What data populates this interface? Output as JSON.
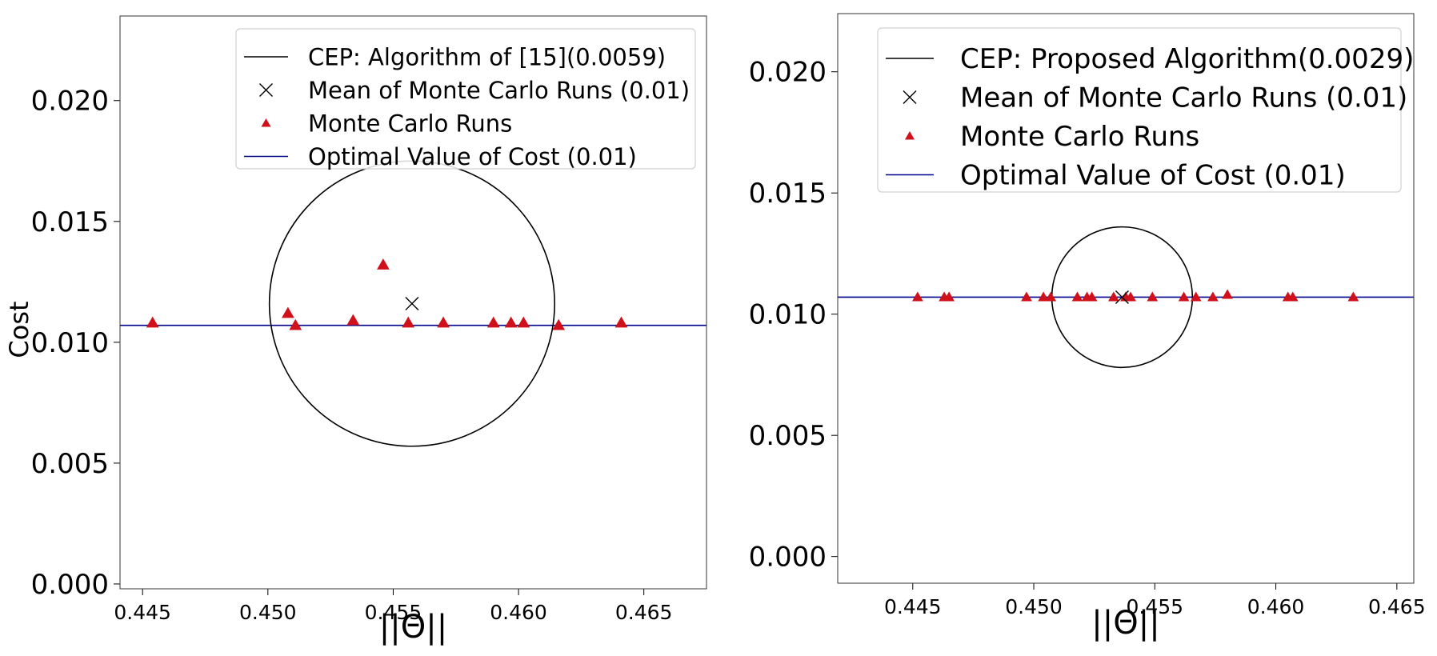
{
  "chart_data": [
    {
      "type": "scatter",
      "xlabel": "||Θ||",
      "ylabel": "Cost",
      "xlim": [
        0.4441,
        0.4675
      ],
      "ylim": [
        -0.0002,
        0.0235
      ],
      "xticks": [
        0.445,
        0.45,
        0.455,
        0.46,
        0.465
      ],
      "xtick_labels": [
        "0.445",
        "0.450",
        "0.455",
        "0.460",
        "0.465"
      ],
      "yticks": [
        0.0,
        0.005,
        0.01,
        0.015,
        0.02
      ],
      "ytick_labels": [
        "0.000",
        "0.005",
        "0.010",
        "0.015",
        "0.020"
      ],
      "legend_position": "top-right",
      "legend": [
        {
          "label": "CEP: Algorithm of [15](0.0059)",
          "kind": "line",
          "color": "#000000"
        },
        {
          "label": "Mean of Monte Carlo Runs (0.01)",
          "kind": "x-marker",
          "color": "#000000"
        },
        {
          "label": "Monte Carlo Runs",
          "kind": "triangle-marker",
          "color": "#d0101a"
        },
        {
          "label": "Optimal Value of Cost (0.01)",
          "kind": "line",
          "color": "#00008b"
        }
      ],
      "cep_circle": {
        "center_x": 0.45575,
        "center_y": 0.0116,
        "radius": 0.0059
      },
      "mean": {
        "x": 0.45575,
        "y": 0.0116
      },
      "optimal_cost": 0.0107,
      "runs": [
        {
          "x": 0.4454,
          "y": 0.0108
        },
        {
          "x": 0.4508,
          "y": 0.0112
        },
        {
          "x": 0.4511,
          "y": 0.0107
        },
        {
          "x": 0.4534,
          "y": 0.0109
        },
        {
          "x": 0.4546,
          "y": 0.0132
        },
        {
          "x": 0.4556,
          "y": 0.0108
        },
        {
          "x": 0.457,
          "y": 0.0108
        },
        {
          "x": 0.459,
          "y": 0.0108
        },
        {
          "x": 0.4597,
          "y": 0.0108
        },
        {
          "x": 0.4602,
          "y": 0.0108
        },
        {
          "x": 0.4616,
          "y": 0.0107
        },
        {
          "x": 0.4641,
          "y": 0.0108
        }
      ]
    },
    {
      "type": "scatter",
      "xlabel": "||Θ||",
      "ylabel": "",
      "xlim": [
        0.4419,
        0.4657
      ],
      "ylim": [
        -0.0011,
        0.0224
      ],
      "xticks": [
        0.445,
        0.45,
        0.455,
        0.46,
        0.465
      ],
      "xtick_labels": [
        "0.445",
        "0.450",
        "0.455",
        "0.460",
        "0.465"
      ],
      "yticks": [
        0.0,
        0.005,
        0.01,
        0.015,
        0.02
      ],
      "ytick_labels": [
        "0.000",
        "0.005",
        "0.010",
        "0.015",
        "0.020"
      ],
      "legend_position": "top-right",
      "legend": [
        {
          "label": "CEP: Proposed Algorithm(0.0029)",
          "kind": "line",
          "color": "#000000"
        },
        {
          "label": "Mean of Monte Carlo Runs (0.01)",
          "kind": "x-marker",
          "color": "#000000"
        },
        {
          "label": "Monte Carlo Runs",
          "kind": "triangle-marker",
          "color": "#d0101a"
        },
        {
          "label": "Optimal Value of Cost (0.01)",
          "kind": "line",
          "color": "#00008b"
        }
      ],
      "cep_circle": {
        "center_x": 0.45365,
        "center_y": 0.0107,
        "radius": 0.0029
      },
      "mean": {
        "x": 0.45365,
        "y": 0.0107
      },
      "optimal_cost": 0.0107,
      "runs": [
        {
          "x": 0.4452,
          "y": 0.0107
        },
        {
          "x": 0.4463,
          "y": 0.0107
        },
        {
          "x": 0.4465,
          "y": 0.0107
        },
        {
          "x": 0.4497,
          "y": 0.0107
        },
        {
          "x": 0.4504,
          "y": 0.0107
        },
        {
          "x": 0.4507,
          "y": 0.0107
        },
        {
          "x": 0.4518,
          "y": 0.0107
        },
        {
          "x": 0.4522,
          "y": 0.0107
        },
        {
          "x": 0.4524,
          "y": 0.0107
        },
        {
          "x": 0.4533,
          "y": 0.0107
        },
        {
          "x": 0.4538,
          "y": 0.0107
        },
        {
          "x": 0.454,
          "y": 0.0107
        },
        {
          "x": 0.4549,
          "y": 0.0107
        },
        {
          "x": 0.4562,
          "y": 0.0107
        },
        {
          "x": 0.4567,
          "y": 0.0107
        },
        {
          "x": 0.4574,
          "y": 0.0107
        },
        {
          "x": 0.458,
          "y": 0.0108
        },
        {
          "x": 0.4605,
          "y": 0.0107
        },
        {
          "x": 0.4607,
          "y": 0.0107
        },
        {
          "x": 0.4632,
          "y": 0.0107
        }
      ]
    }
  ]
}
